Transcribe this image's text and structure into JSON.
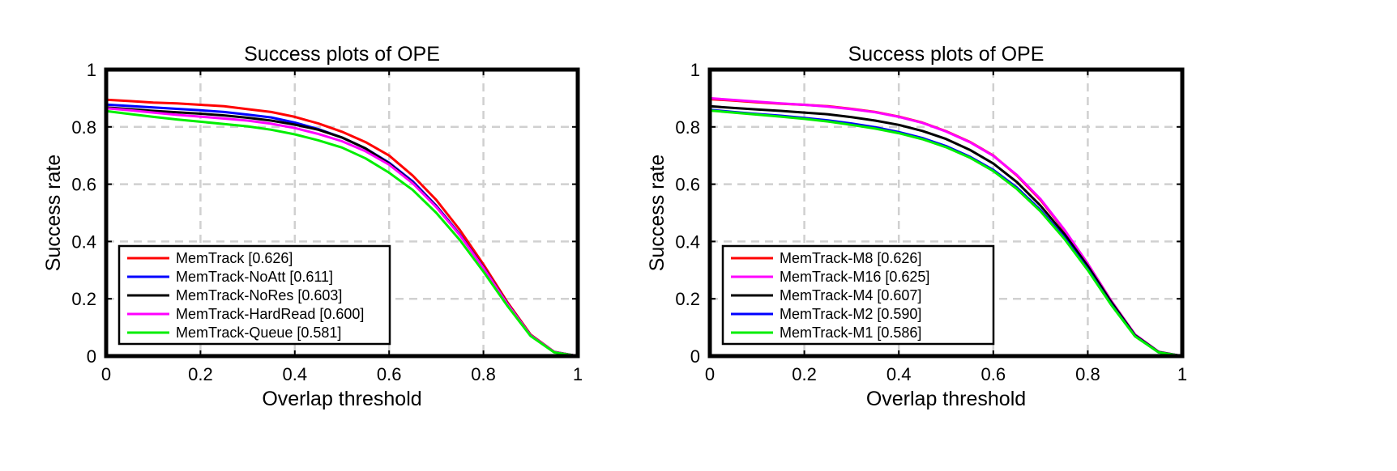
{
  "chart_data": [
    {
      "type": "line",
      "title": "Success plots of OPE",
      "xlabel": "Overlap threshold",
      "ylabel": "Success rate",
      "xlim": [
        0,
        1
      ],
      "ylim": [
        0,
        1
      ],
      "xticks": [
        "0",
        "0.2",
        "0.4",
        "0.6",
        "0.8",
        "1"
      ],
      "yticks": [
        "0",
        "0.2",
        "0.4",
        "0.6",
        "0.8",
        "1"
      ],
      "grid": true,
      "legend_position": "bottom-left",
      "x": [
        0,
        0.05,
        0.1,
        0.15,
        0.2,
        0.25,
        0.3,
        0.35,
        0.4,
        0.45,
        0.5,
        0.55,
        0.6,
        0.65,
        0.7,
        0.75,
        0.8,
        0.85,
        0.9,
        0.95,
        1.0
      ],
      "series": [
        {
          "name": "MemTrack [0.626]",
          "color": "#ff0000",
          "values": [
            0.895,
            0.89,
            0.885,
            0.882,
            0.877,
            0.872,
            0.862,
            0.852,
            0.835,
            0.812,
            0.783,
            0.747,
            0.7,
            0.63,
            0.545,
            0.44,
            0.32,
            0.19,
            0.075,
            0.015,
            0.0
          ]
        },
        {
          "name": "MemTrack-NoAtt [0.611]",
          "color": "#0000ff",
          "values": [
            0.878,
            0.873,
            0.868,
            0.863,
            0.858,
            0.852,
            0.843,
            0.833,
            0.815,
            0.792,
            0.763,
            0.725,
            0.675,
            0.61,
            0.525,
            0.425,
            0.31,
            0.185,
            0.073,
            0.014,
            0.0
          ]
        },
        {
          "name": "MemTrack-NoRes [0.603]",
          "color": "#000000",
          "values": [
            0.868,
            0.862,
            0.856,
            0.851,
            0.846,
            0.84,
            0.832,
            0.822,
            0.808,
            0.79,
            0.763,
            0.725,
            0.672,
            0.605,
            0.522,
            0.423,
            0.31,
            0.185,
            0.072,
            0.014,
            0.0
          ]
        },
        {
          "name": "MemTrack-HardRead [0.600]",
          "color": "#ff00ff",
          "values": [
            0.865,
            0.858,
            0.85,
            0.842,
            0.836,
            0.829,
            0.822,
            0.811,
            0.796,
            0.775,
            0.75,
            0.715,
            0.668,
            0.603,
            0.52,
            0.422,
            0.308,
            0.184,
            0.072,
            0.014,
            0.0
          ]
        },
        {
          "name": "MemTrack-Queue [0.581]",
          "color": "#00ee00",
          "values": [
            0.855,
            0.845,
            0.835,
            0.826,
            0.818,
            0.81,
            0.802,
            0.79,
            0.774,
            0.753,
            0.728,
            0.69,
            0.64,
            0.58,
            0.5,
            0.405,
            0.295,
            0.177,
            0.07,
            0.013,
            0.0
          ]
        }
      ]
    },
    {
      "type": "line",
      "title": "Success plots of OPE",
      "xlabel": "Overlap threshold",
      "ylabel": "Success rate",
      "xlim": [
        0,
        1
      ],
      "ylim": [
        0,
        1
      ],
      "xticks": [
        "0",
        "0.2",
        "0.4",
        "0.6",
        "0.8",
        "1"
      ],
      "yticks": [
        "0",
        "0.2",
        "0.4",
        "0.6",
        "0.8",
        "1"
      ],
      "grid": true,
      "legend_position": "bottom-left",
      "x": [
        0,
        0.05,
        0.1,
        0.15,
        0.2,
        0.25,
        0.3,
        0.35,
        0.4,
        0.45,
        0.5,
        0.55,
        0.6,
        0.65,
        0.7,
        0.75,
        0.8,
        0.85,
        0.9,
        0.95,
        1.0
      ],
      "series": [
        {
          "name": "MemTrack-M8 [0.626]",
          "color": "#ff0000",
          "values": [
            0.897,
            0.892,
            0.886,
            0.881,
            0.877,
            0.872,
            0.863,
            0.852,
            0.836,
            0.815,
            0.785,
            0.748,
            0.7,
            0.63,
            0.545,
            0.44,
            0.322,
            0.192,
            0.075,
            0.015,
            0.0
          ]
        },
        {
          "name": "MemTrack-M16 [0.625]",
          "color": "#ff00ff",
          "values": [
            0.9,
            0.894,
            0.888,
            0.882,
            0.877,
            0.871,
            0.862,
            0.851,
            0.835,
            0.814,
            0.784,
            0.747,
            0.699,
            0.632,
            0.548,
            0.442,
            0.322,
            0.192,
            0.075,
            0.015,
            0.0
          ]
        },
        {
          "name": "MemTrack-M4 [0.607]",
          "color": "#000000",
          "values": [
            0.872,
            0.866,
            0.861,
            0.856,
            0.85,
            0.844,
            0.834,
            0.822,
            0.807,
            0.786,
            0.758,
            0.72,
            0.672,
            0.607,
            0.525,
            0.427,
            0.314,
            0.188,
            0.073,
            0.014,
            0.0
          ]
        },
        {
          "name": "MemTrack-M2 [0.590]",
          "color": "#0000ff",
          "values": [
            0.86,
            0.852,
            0.845,
            0.839,
            0.831,
            0.823,
            0.812,
            0.799,
            0.782,
            0.761,
            0.733,
            0.696,
            0.65,
            0.588,
            0.51,
            0.415,
            0.303,
            0.18,
            0.07,
            0.013,
            0.0
          ]
        },
        {
          "name": "MemTrack-M1 [0.586]",
          "color": "#00ee00",
          "values": [
            0.857,
            0.85,
            0.843,
            0.836,
            0.828,
            0.819,
            0.807,
            0.794,
            0.778,
            0.757,
            0.729,
            0.693,
            0.646,
            0.583,
            0.505,
            0.41,
            0.3,
            0.178,
            0.069,
            0.013,
            0.0
          ]
        }
      ]
    }
  ]
}
